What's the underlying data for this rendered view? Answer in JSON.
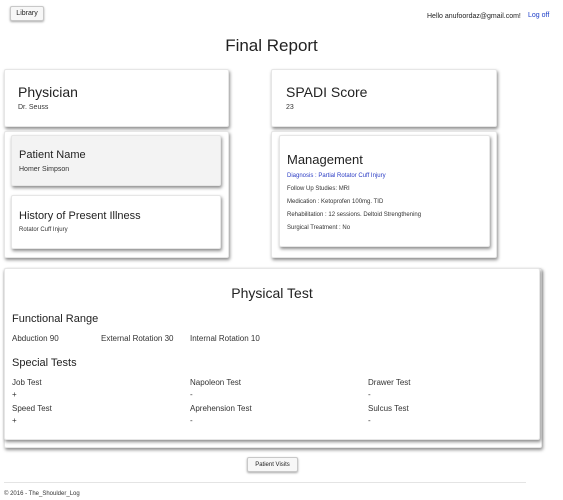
{
  "topbar": {
    "library_label": "Library",
    "greeting": "Hello anufoordaz@gmail.com!",
    "logoff_label": "Log off"
  },
  "page_title": "Final Report",
  "physician": {
    "heading": "Physician",
    "name": "Dr. Seuss"
  },
  "spadi": {
    "heading": "SPADI Score",
    "value": "23"
  },
  "patient": {
    "heading": "Patient Name",
    "name": "Homer Simpson"
  },
  "history": {
    "heading": "History of Present Illness",
    "text": "Rotator Cuff Injury"
  },
  "management": {
    "heading": "Management",
    "diagnosis": "Diagnosis : Partial Rotator Cuff Injury",
    "followup": "Follow Up Studies: MRI",
    "medication": "Medication : Ketoprofen 100mg. TID",
    "rehabilitation": "Rehabilitation : 12 sessions. Deltoid Strengthening",
    "surgical": "Surgical Treatment : No",
    "diagnosis_color": "#2a3bc4"
  },
  "physical_test": {
    "title": "Physical Test",
    "functional_heading": "Functional Range",
    "functional": [
      {
        "label": "Abduction 90"
      },
      {
        "label": "External Rotation 30"
      },
      {
        "label": "Internal Rotation 10"
      }
    ],
    "special_heading": "Special Tests",
    "tests": [
      {
        "name": "Job Test",
        "result": "+"
      },
      {
        "name": "Napoleon Test",
        "result": "-"
      },
      {
        "name": "Drawer Test",
        "result": "-"
      },
      {
        "name": "Speed Test",
        "result": "+"
      },
      {
        "name": "Aprehension Test",
        "result": "-"
      },
      {
        "name": "Sulcus Test",
        "result": "-"
      }
    ]
  },
  "patient_visits_label": "Patient Visits",
  "footer": "© 2016 - The_Shoulder_Log",
  "colors": {
    "link": "#1a3cc8",
    "text": "#222222"
  }
}
